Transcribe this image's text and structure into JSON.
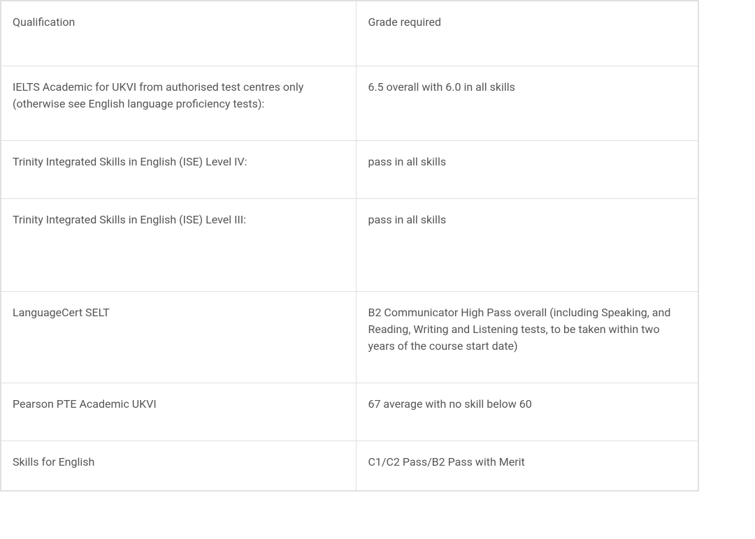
{
  "table": {
    "columns": [
      {
        "label": "Qualification"
      },
      {
        "label": "Grade required"
      }
    ],
    "rows": [
      {
        "qualification": "IELTS Academic for UKVI from authorised test centres only (otherwise see English language proficiency tests):",
        "grade": "6.5 overall with 6.0 in all skills",
        "row_class": "row-normal"
      },
      {
        "qualification": "Trinity Integrated Skills in English (ISE) Level IV:",
        "grade": "pass in all skills",
        "row_class": "row-normal"
      },
      {
        "qualification": "Trinity Integrated Skills in English (ISE) Level III:",
        "grade": "pass in all skills",
        "row_class": "row-tall"
      },
      {
        "qualification": "LanguageCert SELT",
        "grade": "B2 Communicator High Pass overall (including Speaking, and Reading, Writing and Listening tests, to be taken within two years of the course start date)",
        "row_class": "row-normal"
      },
      {
        "qualification": "Pearson PTE Academic UKVI",
        "grade": "67 average with no skill below 60",
        "row_class": "row-normal"
      },
      {
        "qualification": "Skills for English",
        "grade": "C1/C2 Pass/B2 Pass with Merit",
        "row_class": "row-short"
      }
    ],
    "styling": {
      "border_color": "#e0e0e0",
      "text_color": "#555555",
      "background_color": "#ffffff",
      "font_size": 16,
      "cell_padding": "18px 16px",
      "column_widths": [
        "51%",
        "49%"
      ]
    }
  }
}
